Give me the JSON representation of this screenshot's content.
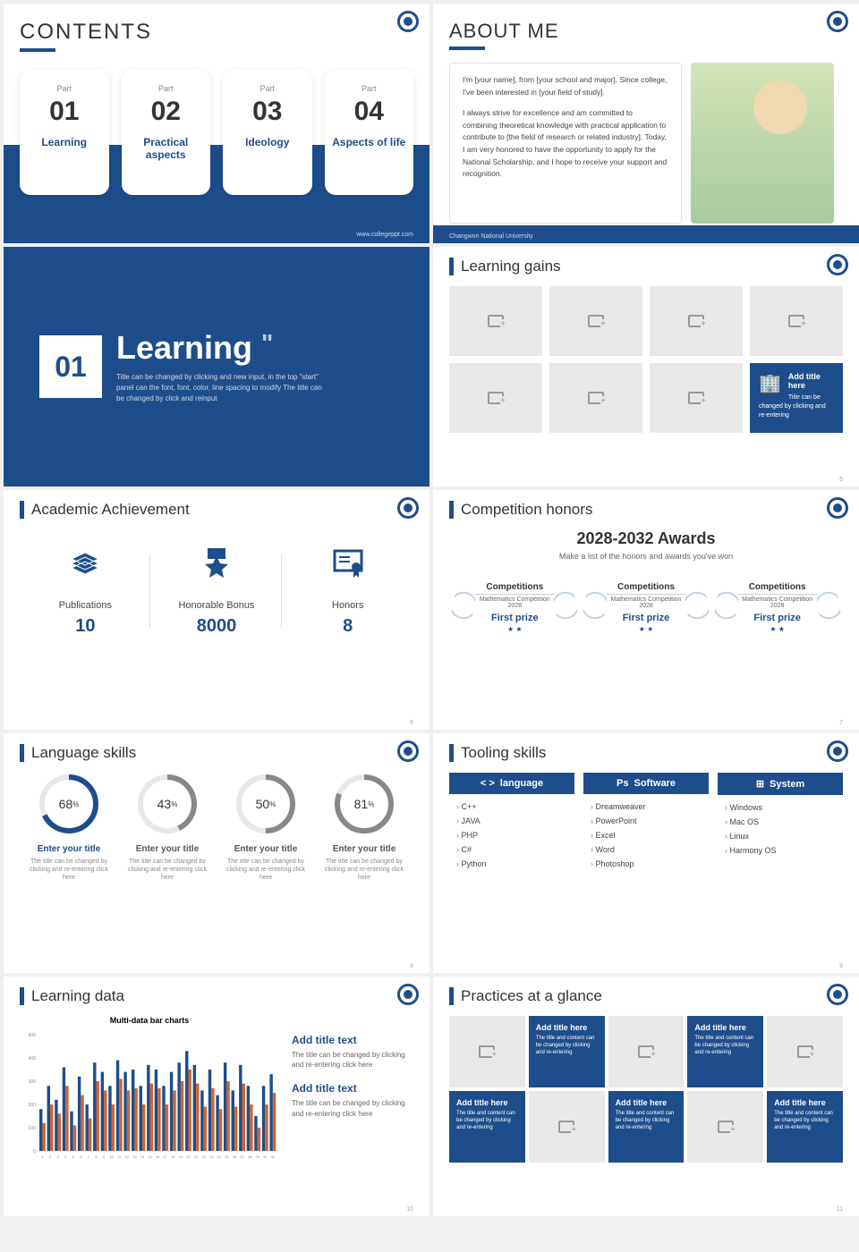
{
  "accent": "#1e4d8b",
  "s1": {
    "title": "CONTENTS",
    "cards": [
      {
        "part": "Part",
        "num": "01",
        "label": "Learning"
      },
      {
        "part": "Part",
        "num": "02",
        "label": "Practical aspects"
      },
      {
        "part": "Part",
        "num": "03",
        "label": "Ideology"
      },
      {
        "part": "Part",
        "num": "04",
        "label": "Aspects of life"
      }
    ],
    "footer": "www.collegeppt.com"
  },
  "s2": {
    "title": "ABOUT ME",
    "p1": "I'm [your name], from [your school and major]. Since college, I've been interested in [your field of study].",
    "p2": "I always strive for excellence and am committed to combining theoretical knowledge with practical application to contribute to [the field of research or related industry]. Today, I am very honored to have the opportunity to apply for the National Scholarship, and I hope to receive your support and recognition.",
    "footer": "Changwon National University"
  },
  "s3": {
    "num": "01",
    "title": "Learning",
    "desc": "Title can be changed by clicking and new input, in the top \"start\" panel can the font, font, color, line spacing to modify The title can be changed by click and reinput"
  },
  "s4": {
    "title": "Learning gains",
    "tile_title": "Add title here",
    "tile_desc": "Title can be changed by clicking and re-entering",
    "page": "5"
  },
  "s5": {
    "title": "Academic Achievement",
    "items": [
      {
        "label": "Publications",
        "value": "10"
      },
      {
        "label": "Honorable Bonus",
        "value": "8000"
      },
      {
        "label": "Honors",
        "value": "8"
      }
    ],
    "page": "6"
  },
  "s6": {
    "title": "Competition honors",
    "header": "2028-2032 Awards",
    "sub": "Make a list of the honors and awards you've won",
    "awards": [
      {
        "comp": "Competitions",
        "name": "Mathematics Competition 2028",
        "prize": "First prize"
      },
      {
        "comp": "Competitions",
        "name": "Mathematics Competition 2028",
        "prize": "First prize"
      },
      {
        "comp": "Competitions",
        "name": "Mathematics Competition 2028",
        "prize": "First prize"
      }
    ],
    "page": "7"
  },
  "s7": {
    "title": "Language skills",
    "rings": [
      {
        "pct": 68,
        "color": "#1e4d8b",
        "title": "Enter your title",
        "desc": "The title can be changed by clicking and re-entering click here",
        "titleColor": "blue"
      },
      {
        "pct": 43,
        "color": "#888888",
        "title": "Enter your title",
        "desc": "The title can be changed by clicking and re-entering click here",
        "titleColor": "gray"
      },
      {
        "pct": 50,
        "color": "#888888",
        "title": "Enter your title",
        "desc": "The title can be changed by clicking and re-entering click here",
        "titleColor": "gray"
      },
      {
        "pct": 81,
        "color": "#888888",
        "title": "Enter your title",
        "desc": "The title can be changed by clicking and re-entering click here",
        "titleColor": "gray"
      }
    ],
    "page": "8"
  },
  "s8": {
    "title": "Tooling skills",
    "cols": [
      {
        "head": "language",
        "icon": "< >",
        "items": [
          "C++",
          "JAVA",
          "PHP",
          "C#",
          "Python"
        ]
      },
      {
        "head": "Software",
        "icon": "Ps",
        "items": [
          "Dreamweaver",
          "PowerPoint",
          "Excel",
          "Word",
          "Photoshop"
        ]
      },
      {
        "head": "System",
        "icon": "⊞",
        "items": [
          "Windows",
          "Mac OS",
          "Linux",
          "Harmony OS"
        ]
      }
    ],
    "page": "9"
  },
  "s9": {
    "title": "Learning data",
    "chart": {
      "title": "Multi-data bar charts",
      "color1": "#1e4d8b",
      "color2": "#cc6633",
      "ymax": 500,
      "ystep": 100,
      "data1": [
        180,
        280,
        220,
        360,
        170,
        320,
        200,
        380,
        340,
        280,
        390,
        340,
        350,
        280,
        370,
        350,
        280,
        340,
        380,
        430,
        370,
        260,
        350,
        240,
        380,
        260,
        370,
        280,
        150,
        280,
        330
      ],
      "data2": [
        120,
        200,
        160,
        280,
        110,
        240,
        140,
        300,
        260,
        200,
        310,
        260,
        270,
        200,
        290,
        270,
        200,
        260,
        300,
        350,
        290,
        190,
        270,
        180,
        300,
        190,
        290,
        200,
        100,
        200,
        250
      ]
    },
    "side": [
      {
        "t": "Add title text",
        "d": "The title can be changed by clicking and re-entering click here"
      },
      {
        "t": "Add title text",
        "d": "The title can be changed by clicking and re-entering click here"
      }
    ],
    "page": "10"
  },
  "s10": {
    "title": "Practices at a glance",
    "tile_t": "Add title here",
    "tile_d": "The title and content can be changed by clicking and re-entering",
    "page": "11"
  }
}
